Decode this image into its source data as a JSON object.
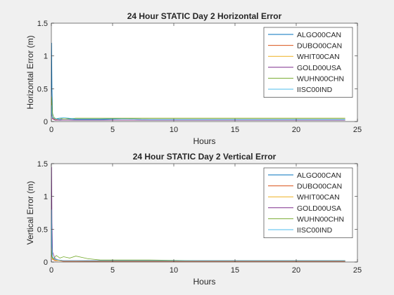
{
  "figure": {
    "background": "#f0f0f0"
  },
  "chart_data": [
    {
      "type": "line",
      "title": "24 Hour STATIC Day 2 Horizontal Error",
      "xlabel": "Hours",
      "ylabel": "Horizontal Error (m)",
      "xlim": [
        0,
        25
      ],
      "ylim": [
        0,
        1.5
      ],
      "xticks": [
        "0",
        "5",
        "10",
        "15",
        "20",
        "25"
      ],
      "yticks": [
        "0",
        "0.5",
        "1",
        "1.5"
      ],
      "grid": false,
      "legend_position": "top-right",
      "series": [
        {
          "name": "ALGO00CAN",
          "color": "#0072bd",
          "x": [
            0,
            0.02,
            0.05,
            0.1,
            0.2,
            0.4,
            0.7,
            1.0,
            2,
            4,
            6,
            8,
            12,
            16,
            20,
            24
          ],
          "y": [
            0.1,
            1.2,
            0.5,
            0.12,
            0.06,
            0.04,
            0.03,
            0.04,
            0.03,
            0.03,
            0.04,
            0.03,
            0.03,
            0.03,
            0.03,
            0.03
          ]
        },
        {
          "name": "DUBO00CAN",
          "color": "#d95319",
          "x": [
            0,
            0.02,
            0.05,
            0.1,
            0.3,
            0.6,
            1.0,
            2,
            4,
            8,
            12,
            16,
            20,
            24
          ],
          "y": [
            0.05,
            0.3,
            0.12,
            0.05,
            0.03,
            0.02,
            0.02,
            0.02,
            0.02,
            0.02,
            0.02,
            0.02,
            0.02,
            0.02
          ]
        },
        {
          "name": "WHIT00CAN",
          "color": "#edb120",
          "x": [
            0,
            0.02,
            0.05,
            0.1,
            0.3,
            0.6,
            1.0,
            2,
            4,
            8,
            12,
            16,
            20,
            24
          ],
          "y": [
            0.08,
            0.35,
            0.15,
            0.06,
            0.04,
            0.05,
            0.04,
            0.05,
            0.05,
            0.05,
            0.05,
            0.05,
            0.05,
            0.05
          ]
        },
        {
          "name": "GOLD00USA",
          "color": "#7e2f8e",
          "x": [
            0,
            0.02,
            0.05,
            0.1,
            0.3,
            0.6,
            1.0,
            2,
            4,
            8,
            12,
            16,
            20,
            24
          ],
          "y": [
            0.04,
            0.22,
            0.1,
            0.04,
            0.02,
            0.02,
            0.02,
            0.02,
            0.02,
            0.02,
            0.02,
            0.02,
            0.02,
            0.02
          ]
        },
        {
          "name": "WUHN00CHN",
          "color": "#77ac30",
          "x": [
            0,
            0.02,
            0.05,
            0.1,
            0.2,
            0.4,
            0.7,
            1.0,
            2,
            4,
            8,
            12,
            16,
            20,
            24
          ],
          "y": [
            0.1,
            0.38,
            0.28,
            0.12,
            0.06,
            0.04,
            0.05,
            0.04,
            0.05,
            0.05,
            0.05,
            0.05,
            0.05,
            0.05,
            0.05
          ]
        },
        {
          "name": "IISC00IND",
          "color": "#4dbeee",
          "x": [
            0,
            0.02,
            0.05,
            0.1,
            0.3,
            0.6,
            1.0,
            2,
            4,
            6,
            8,
            12,
            16,
            20,
            24
          ],
          "y": [
            0.05,
            0.25,
            0.12,
            0.06,
            0.04,
            0.05,
            0.06,
            0.04,
            0.04,
            0.04,
            0.03,
            0.03,
            0.03,
            0.03,
            0.03
          ]
        }
      ]
    },
    {
      "type": "line",
      "title": "24 Hour STATIC Day 2 Vertical Error",
      "xlabel": "Hours",
      "ylabel": "Vertical Error (m)",
      "xlim": [
        0,
        25
      ],
      "ylim": [
        0,
        1.5
      ],
      "xticks": [
        "0",
        "5",
        "10",
        "15",
        "20",
        "25"
      ],
      "yticks": [
        "0",
        "0.5",
        "1",
        "1.5"
      ],
      "grid": false,
      "legend_position": "top-right",
      "series": [
        {
          "name": "ALGO00CAN",
          "color": "#0072bd",
          "x": [
            0,
            0.02,
            0.05,
            0.1,
            0.3,
            0.6,
            1.0,
            2,
            4,
            8,
            12,
            16,
            20,
            24
          ],
          "y": [
            0.05,
            0.6,
            0.2,
            0.06,
            0.03,
            0.02,
            0.02,
            0.02,
            0.01,
            0.01,
            0.01,
            0.01,
            0.01,
            0.01
          ]
        },
        {
          "name": "DUBO00CAN",
          "color": "#d95319",
          "x": [
            0,
            0.02,
            0.05,
            0.1,
            0.3,
            0.6,
            1.0,
            2,
            4,
            8,
            12,
            16,
            20,
            24
          ],
          "y": [
            0.04,
            0.25,
            0.1,
            0.04,
            0.02,
            0.02,
            0.01,
            0.01,
            0.01,
            0.01,
            0.01,
            0.01,
            0.01,
            0.01
          ]
        },
        {
          "name": "WHIT00CAN",
          "color": "#edb120",
          "x": [
            0,
            0.02,
            0.05,
            0.1,
            0.3,
            0.6,
            1.0,
            2,
            4,
            8,
            12,
            16,
            20,
            24
          ],
          "y": [
            0.05,
            0.3,
            0.12,
            0.05,
            0.03,
            0.02,
            0.02,
            0.02,
            0.02,
            0.02,
            0.02,
            0.02,
            0.02,
            0.02
          ]
        },
        {
          "name": "GOLD00USA",
          "color": "#7e2f8e",
          "x": [
            0,
            0.02,
            0.05,
            0.1,
            0.3,
            0.6,
            1.0,
            2,
            4,
            8,
            12,
            16,
            20,
            24
          ],
          "y": [
            0.2,
            1.45,
            0.6,
            0.15,
            0.05,
            0.03,
            0.02,
            0.02,
            0.02,
            0.02,
            0.02,
            0.02,
            0.02,
            0.02
          ]
        },
        {
          "name": "WUHN00CHN",
          "color": "#77ac30",
          "x": [
            0,
            0.02,
            0.05,
            0.1,
            0.2,
            0.4,
            0.7,
            1.0,
            1.5,
            2,
            3,
            4,
            8,
            12,
            16,
            20,
            24
          ],
          "y": [
            0.05,
            0.18,
            0.12,
            0.06,
            0.05,
            0.1,
            0.06,
            0.08,
            0.06,
            0.09,
            0.05,
            0.03,
            0.03,
            0.02,
            0.02,
            0.02,
            0.02
          ]
        },
        {
          "name": "IISC00IND",
          "color": "#4dbeee",
          "x": [
            0,
            0.02,
            0.05,
            0.1,
            0.3,
            0.6,
            1.0,
            2,
            4,
            8,
            12,
            16,
            20,
            24
          ],
          "y": [
            0.1,
            0.8,
            0.25,
            0.08,
            0.04,
            0.03,
            0.02,
            0.02,
            0.02,
            0.02,
            0.02,
            0.02,
            0.02,
            0.02
          ]
        }
      ]
    }
  ]
}
